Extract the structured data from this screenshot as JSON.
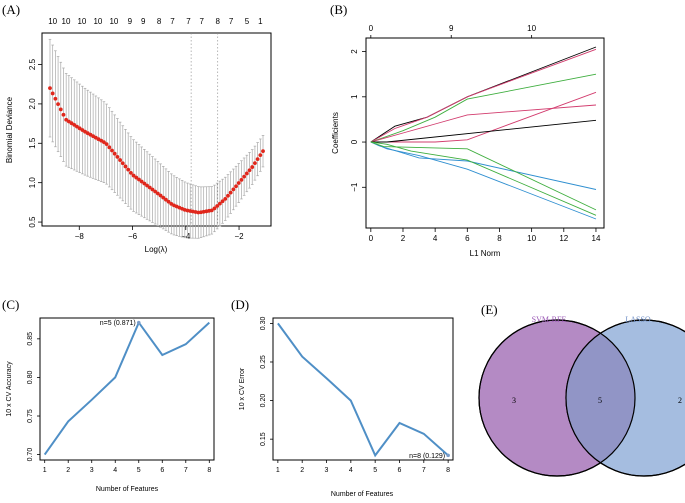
{
  "chart_data": [
    {
      "panel": "A",
      "type": "scatter",
      "panel_label": "(A)",
      "xlabel": "Log(λ)",
      "ylabel": "Binomial Deviance",
      "xlim": [
        -9.4,
        -0.8
      ],
      "ylim": [
        0.45,
        2.9
      ],
      "xticks": [
        -8,
        -6,
        -4,
        -2
      ],
      "yticks": [
        0.5,
        1.0,
        1.5,
        2.0,
        2.5
      ],
      "xtick_labels": [
        "−8",
        "−6",
        "−4",
        "−2"
      ],
      "ytick_labels": [
        "0.5",
        "1.0",
        "1.5",
        "2.0",
        "2.5"
      ],
      "top_labels": [
        {
          "x": -9.0,
          "label": "10"
        },
        {
          "x": -8.5,
          "label": "10"
        },
        {
          "x": -7.9,
          "label": "10"
        },
        {
          "x": -7.3,
          "label": "10"
        },
        {
          "x": -6.7,
          "label": "10"
        },
        {
          "x": -6.1,
          "label": "9"
        },
        {
          "x": -5.6,
          "label": "9"
        },
        {
          "x": -5.0,
          "label": "8"
        },
        {
          "x": -4.5,
          "label": "7"
        },
        {
          "x": -3.9,
          "label": "7"
        },
        {
          "x": -3.4,
          "label": "7"
        },
        {
          "x": -2.8,
          "label": "8"
        },
        {
          "x": -2.3,
          "label": "7"
        },
        {
          "x": -1.7,
          "label": "5"
        },
        {
          "x": -1.2,
          "label": "1"
        }
      ],
      "vlines": [
        -3.8,
        -2.8
      ],
      "series_x_range": [
        -9.1,
        -1.1
      ],
      "series_points": 80,
      "series_anchors": [
        {
          "x": -9.1,
          "y": 2.2
        },
        {
          "x": -8.5,
          "y": 1.8
        },
        {
          "x": -7.8,
          "y": 1.65
        },
        {
          "x": -7.0,
          "y": 1.5
        },
        {
          "x": -6.5,
          "y": 1.3
        },
        {
          "x": -6.0,
          "y": 1.1
        },
        {
          "x": -5.0,
          "y": 0.85
        },
        {
          "x": -4.5,
          "y": 0.72
        },
        {
          "x": -4.0,
          "y": 0.65
        },
        {
          "x": -3.5,
          "y": 0.62
        },
        {
          "x": -3.0,
          "y": 0.65
        },
        {
          "x": -2.5,
          "y": 0.8
        },
        {
          "x": -2.0,
          "y": 1.0
        },
        {
          "x": -1.5,
          "y": 1.2
        },
        {
          "x": -1.1,
          "y": 1.4
        }
      ],
      "error_halfwidth": {
        "at_min_x": 0.62,
        "at_max_x": 0.2
      },
      "point_color": "#e0271c",
      "errorbar_color": "#a8a8a8"
    },
    {
      "panel": "B",
      "type": "line",
      "panel_label": "(B)",
      "xlabel": "L1 Norm",
      "ylabel": "Coefficients",
      "xlim": [
        -0.3,
        14.5
      ],
      "ylim": [
        -1.9,
        2.3
      ],
      "xticks": [
        0,
        2,
        4,
        6,
        8,
        10,
        12,
        14
      ],
      "yticks": [
        -1,
        0,
        1,
        2
      ],
      "xtick_labels": [
        "0",
        "2",
        "4",
        "6",
        "8",
        "10",
        "12",
        "14"
      ],
      "ytick_labels": [
        "−1",
        "0",
        "1",
        "2"
      ],
      "top_labels": [
        {
          "x": 0,
          "label": "0"
        },
        {
          "x": 5,
          "label": "9"
        },
        {
          "x": 10,
          "label": "10"
        }
      ],
      "series": [
        {
          "color": "#000000",
          "x": [
            0,
            1.5,
            3.5,
            6,
            14
          ],
          "y": [
            0,
            0.35,
            0.55,
            1.0,
            2.1
          ]
        },
        {
          "color": "#d23c6e",
          "x": [
            0,
            1.5,
            3.5,
            6,
            14
          ],
          "y": [
            0,
            0.3,
            0.55,
            1.0,
            2.05
          ]
        },
        {
          "color": "#3fae3f",
          "x": [
            0,
            2,
            4,
            6,
            14
          ],
          "y": [
            0,
            0.25,
            0.55,
            0.95,
            1.5
          ]
        },
        {
          "color": "#d23c6e",
          "x": [
            0,
            2,
            4,
            6,
            14
          ],
          "y": [
            0,
            0.2,
            0.4,
            0.6,
            0.82
          ]
        },
        {
          "color": "#d23c6e",
          "x": [
            0,
            4,
            6,
            14
          ],
          "y": [
            0,
            0,
            0.05,
            1.1
          ]
        },
        {
          "color": "#000000",
          "x": [
            0,
            1,
            14
          ],
          "y": [
            0,
            0,
            0.48
          ]
        },
        {
          "color": "#2f8fd0",
          "x": [
            0,
            0.5,
            3,
            6,
            14
          ],
          "y": [
            0,
            -0.08,
            -0.35,
            -0.42,
            -1.05
          ]
        },
        {
          "color": "#2f8fd0",
          "x": [
            0,
            1,
            3,
            6,
            14
          ],
          "y": [
            0,
            -0.15,
            -0.3,
            -0.6,
            -1.7
          ]
        },
        {
          "color": "#3fae3f",
          "x": [
            0,
            1,
            2.5,
            6,
            14
          ],
          "y": [
            0,
            -0.05,
            -0.2,
            -0.4,
            -1.62
          ]
        },
        {
          "color": "#3fae3f",
          "x": [
            0,
            0.8,
            6,
            14
          ],
          "y": [
            0,
            -0.1,
            -0.15,
            -1.5
          ]
        }
      ]
    },
    {
      "panel": "C",
      "type": "line",
      "panel_label": "(C)",
      "xlabel": "Number of Features",
      "ylabel": "10 x CV Accuracy",
      "xlim": [
        0.8,
        8.2
      ],
      "ylim": [
        0.693,
        0.877
      ],
      "x": [
        1,
        2,
        3,
        4,
        5,
        6,
        7,
        8
      ],
      "y": [
        0.7,
        0.743,
        0.771,
        0.8,
        0.871,
        0.829,
        0.843,
        0.871
      ],
      "yticks": [
        0.7,
        0.75,
        0.8,
        0.85
      ],
      "ytick_labels": [
        "0.70",
        "0.75",
        "0.80",
        "0.85"
      ],
      "xtick_labels": [
        "1",
        "2",
        "3",
        "4",
        "5",
        "6",
        "7",
        "8"
      ],
      "annotation": {
        "x": 5,
        "y": 0.871,
        "text": "n=5 (0.871)"
      },
      "line_color": "#4f8fc6",
      "annotation_color": "#c0392b"
    },
    {
      "panel": "D",
      "type": "line",
      "panel_label": "(D)",
      "xlabel": "Number of Features",
      "ylabel": "10 x CV Error",
      "xlim": [
        0.8,
        8.2
      ],
      "ylim": [
        0.123,
        0.307
      ],
      "x": [
        1,
        2,
        3,
        4,
        5,
        6,
        7,
        8
      ],
      "y": [
        0.3,
        0.257,
        0.229,
        0.2,
        0.129,
        0.171,
        0.157,
        0.129
      ],
      "yticks": [
        0.15,
        0.2,
        0.25,
        0.3
      ],
      "ytick_labels": [
        "0.15",
        "0.20",
        "0.25",
        "0.30"
      ],
      "xtick_labels": [
        "1",
        "2",
        "3",
        "4",
        "5",
        "6",
        "7",
        "8"
      ],
      "annotation": {
        "x": 8,
        "y": 0.129,
        "text": "n=8 (0.129)"
      },
      "line_color": "#4f8fc6",
      "annotation_color": "#c0392b"
    },
    {
      "panel": "E",
      "type": "venn",
      "panel_label": "(E)",
      "sets": [
        {
          "name": "SVM-RFE",
          "only": "3",
          "color": "#b48ac4",
          "label_color": "#9b59b6"
        },
        {
          "name": "LASSO",
          "only": "2",
          "color": "#a5bde0",
          "label_color": "#6f8fc6"
        }
      ],
      "intersection": "5",
      "intersection_color": "#9195c6"
    }
  ]
}
